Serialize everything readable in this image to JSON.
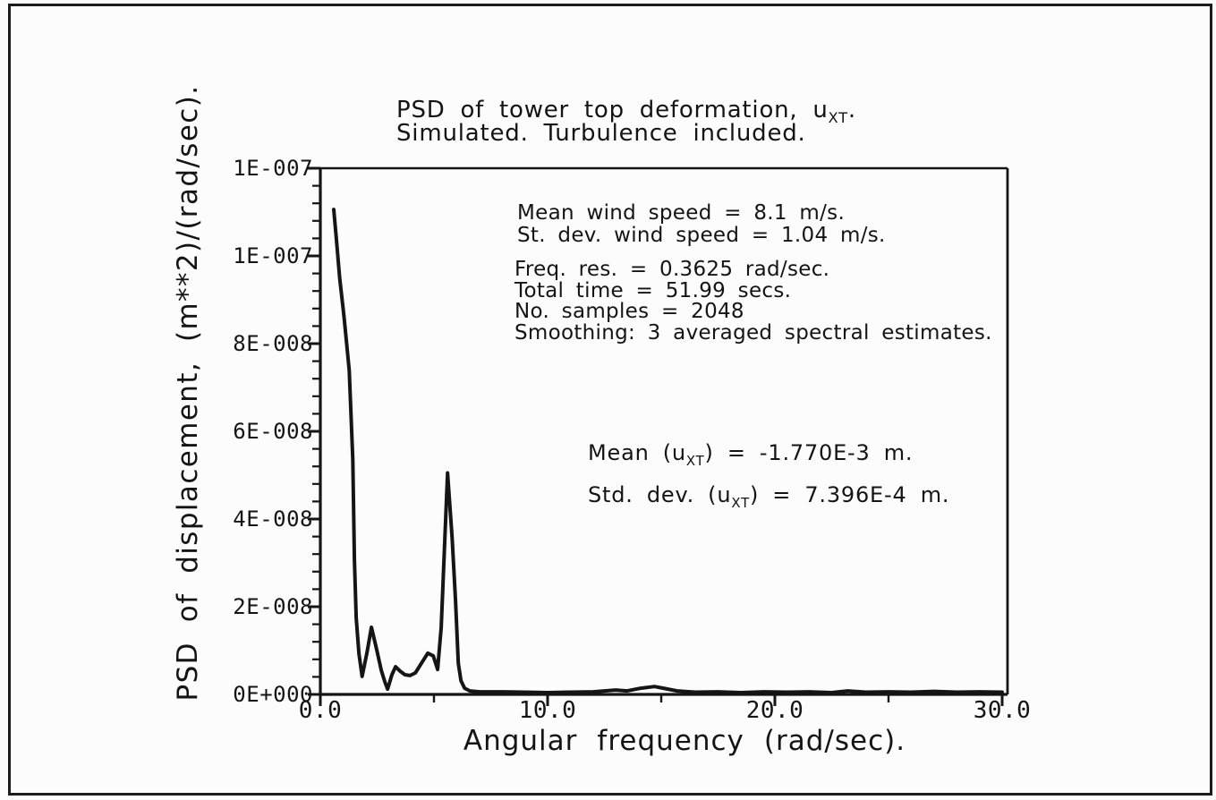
{
  "ink_color": "#151515",
  "title": {
    "line1_pre": "PSD of tower top deformation, u",
    "line1_sub": "XT",
    "line1_post": ".",
    "line2": "Simulated. Turbulence included."
  },
  "annotations": {
    "wind": [
      "Mean wind speed = 8.1 m/s.",
      "St. dev. wind speed = 1.04 m/s."
    ],
    "processing": [
      "Freq. res. = 0.3625 rad/sec.",
      "Total time = 51.99 secs.",
      "No. samples = 2048",
      "Smoothing: 3 averaged spectral estimates."
    ],
    "displacement": {
      "mean_pre": "Mean (u",
      "mean_sub": "XT",
      "mean_post": ") = -1.770E-3 m.",
      "std_pre": "Std. dev. (u",
      "std_sub": "XT",
      "std_post": ") = 7.396E-4 m."
    }
  },
  "chart_data": {
    "type": "line",
    "title": "PSD of tower top deformation, uXT. Simulated. Turbulence included.",
    "xlabel": "Angular frequency (rad/sec).",
    "ylabel": "PSD of displacement, (m**2)/(rad/sec).",
    "xlim": [
      0,
      30
    ],
    "ylim": [
      0,
      1.2e-07
    ],
    "grid": false,
    "legend": "none",
    "line_color": "#151515",
    "x_major_ticks": [
      {
        "value": 0,
        "label": "0.0"
      },
      {
        "value": 10,
        "label": "10.0"
      },
      {
        "value": 20,
        "label": "20.0"
      },
      {
        "value": 30,
        "label": "30.0"
      }
    ],
    "x_minor_ticks": [
      5,
      15,
      25
    ],
    "y_ticks": [
      {
        "value": 1.2e-07,
        "label": "1E-007"
      },
      {
        "value": 1e-07,
        "label": "1E-007"
      },
      {
        "value": 8e-08,
        "label": "8E-008"
      },
      {
        "value": 6e-08,
        "label": "6E-008"
      },
      {
        "value": 4e-08,
        "label": "4E-008"
      },
      {
        "value": 2e-08,
        "label": "2E-008"
      },
      {
        "value": 0,
        "label": "0E+000"
      }
    ],
    "y_minor_step": 4e-09,
    "series": [
      {
        "name": "Simulated PSD of tower top deformation uXT",
        "points": [
          [
            0.59,
            1.106e-07
          ],
          [
            0.72,
            1.03e-07
          ],
          [
            0.85,
            9.5e-08
          ],
          [
            1.04,
            8.63e-08
          ],
          [
            1.27,
            7.39e-08
          ],
          [
            1.43,
            5.35e-08
          ],
          [
            1.5,
            3.07e-08
          ],
          [
            1.58,
            1.74e-08
          ],
          [
            1.7,
            9.2e-09
          ],
          [
            1.84,
            4.1e-09
          ],
          [
            2.05,
            9.5e-09
          ],
          [
            2.25,
            1.53e-08
          ],
          [
            2.48,
            1.02e-08
          ],
          [
            2.68,
            5.5e-09
          ],
          [
            2.85,
            2.7e-09
          ],
          [
            2.96,
            1.2e-09
          ],
          [
            3.15,
            4.5e-09
          ],
          [
            3.31,
            6.3e-09
          ],
          [
            3.51,
            5.3e-09
          ],
          [
            3.72,
            4.5e-09
          ],
          [
            3.94,
            4.3e-09
          ],
          [
            4.18,
            4.9e-09
          ],
          [
            4.45,
            7.1e-09
          ],
          [
            4.73,
            9.4e-09
          ],
          [
            4.97,
            8.8e-09
          ],
          [
            5.16,
            5.7e-09
          ],
          [
            5.32,
            1.53e-08
          ],
          [
            5.48,
            3.57e-08
          ],
          [
            5.6,
            5.05e-08
          ],
          [
            5.8,
            3.57e-08
          ],
          [
            5.95,
            2.14e-08
          ],
          [
            6.07,
            7.1e-09
          ],
          [
            6.19,
            3.1e-09
          ],
          [
            6.35,
            1.4e-09
          ],
          [
            6.58,
            8e-10
          ],
          [
            7.0,
            6e-10
          ],
          [
            8.0,
            6e-10
          ],
          [
            9.0,
            5e-10
          ],
          [
            10.0,
            4e-10
          ],
          [
            11.0,
            5e-10
          ],
          [
            12.0,
            6e-10
          ],
          [
            13.0,
            1e-09
          ],
          [
            13.5,
            8e-10
          ],
          [
            14.1,
            1.4e-09
          ],
          [
            14.7,
            1.8e-09
          ],
          [
            15.1,
            1.4e-09
          ],
          [
            15.7,
            8e-10
          ],
          [
            16.5,
            5e-10
          ],
          [
            17.5,
            6e-10
          ],
          [
            18.5,
            4e-10
          ],
          [
            19.5,
            6e-10
          ],
          [
            20.5,
            5e-10
          ],
          [
            21.5,
            6e-10
          ],
          [
            22.5,
            4e-10
          ],
          [
            23.2,
            8e-10
          ],
          [
            24.0,
            5e-10
          ],
          [
            25.0,
            6e-10
          ],
          [
            26.0,
            5e-10
          ],
          [
            27.0,
            7e-10
          ],
          [
            28.0,
            5e-10
          ],
          [
            29.0,
            6e-10
          ],
          [
            30.0,
            5e-10
          ]
        ]
      }
    ]
  }
}
